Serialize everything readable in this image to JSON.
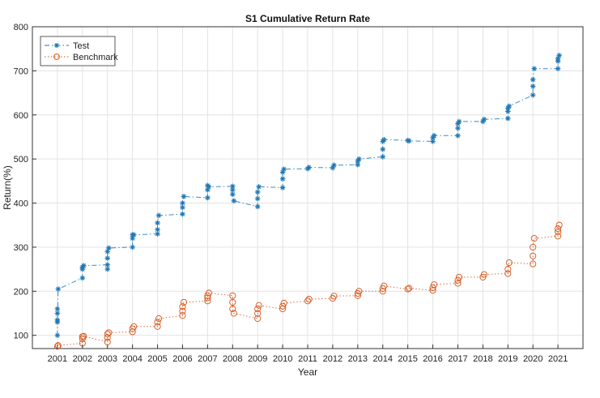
{
  "chart_data": {
    "type": "line",
    "title": "S1 Cumulative Return Rate",
    "xlabel": "Year",
    "ylabel": "Return(%)",
    "xlim": [
      2000,
      2022
    ],
    "ylim": [
      70,
      800
    ],
    "yticks": [
      100,
      200,
      300,
      400,
      500,
      600,
      700,
      800
    ],
    "xticks": [
      "2001",
      "2002",
      "2003",
      "2004",
      "2005",
      "2006",
      "2007",
      "2008",
      "2009",
      "2010",
      "2011",
      "2012",
      "2013",
      "2014",
      "2015",
      "2016",
      "2017",
      "2018",
      "2019",
      "2020",
      "2021"
    ],
    "grid": true,
    "legend_position": "top-left",
    "series": [
      {
        "name": "Test",
        "color": "#1f77b4",
        "marker": "asterisk",
        "line_style": "dash-dot",
        "points": [
          [
            2001,
            100
          ],
          [
            2001,
            135
          ],
          [
            2001,
            160
          ],
          [
            2001,
            150
          ],
          [
            2001,
            130
          ],
          [
            2001.03,
            205
          ],
          [
            2002,
            230
          ],
          [
            2002,
            250
          ],
          [
            2002,
            255
          ],
          [
            2002.05,
            258
          ],
          [
            2003,
            260
          ],
          [
            2003,
            250
          ],
          [
            2003,
            275
          ],
          [
            2003,
            290
          ],
          [
            2003.05,
            298
          ],
          [
            2004,
            300
          ],
          [
            2004,
            320
          ],
          [
            2004,
            328
          ],
          [
            2004.05,
            328
          ],
          [
            2005,
            330
          ],
          [
            2005,
            340
          ],
          [
            2005,
            355
          ],
          [
            2005.05,
            372
          ],
          [
            2006,
            375
          ],
          [
            2006,
            390
          ],
          [
            2006,
            400
          ],
          [
            2006.05,
            415
          ],
          [
            2007,
            412
          ],
          [
            2007,
            430
          ],
          [
            2007,
            440
          ],
          [
            2007.05,
            437
          ],
          [
            2008,
            438
          ],
          [
            2008,
            430
          ],
          [
            2008,
            420
          ],
          [
            2008.05,
            405
          ],
          [
            2009,
            392
          ],
          [
            2009,
            410
          ],
          [
            2009,
            425
          ],
          [
            2009.05,
            437
          ],
          [
            2010,
            435
          ],
          [
            2010,
            455
          ],
          [
            2010,
            470
          ],
          [
            2010.05,
            477
          ],
          [
            2011,
            478
          ],
          [
            2011.05,
            481
          ],
          [
            2012,
            480
          ],
          [
            2012.05,
            486
          ],
          [
            2013,
            487
          ],
          [
            2013,
            495
          ],
          [
            2013.05,
            500
          ],
          [
            2014,
            505
          ],
          [
            2014,
            522
          ],
          [
            2014,
            540
          ],
          [
            2014.05,
            544
          ],
          [
            2015,
            542
          ],
          [
            2015.05,
            541
          ],
          [
            2016,
            540
          ],
          [
            2016,
            548
          ],
          [
            2016.05,
            553
          ],
          [
            2017,
            553
          ],
          [
            2017,
            570
          ],
          [
            2017,
            580
          ],
          [
            2017.05,
            585
          ],
          [
            2018,
            585
          ],
          [
            2018.05,
            590
          ],
          [
            2019,
            592
          ],
          [
            2019,
            608
          ],
          [
            2019,
            615
          ],
          [
            2019.05,
            620
          ],
          [
            2020,
            645
          ],
          [
            2020,
            665
          ],
          [
            2020,
            680
          ],
          [
            2020.05,
            705
          ],
          [
            2021,
            705
          ],
          [
            2021,
            722
          ],
          [
            2021,
            728
          ],
          [
            2021.05,
            735
          ]
        ]
      },
      {
        "name": "Benchmark",
        "color": "#d95319",
        "marker": "circle",
        "line_style": "dotted",
        "points": [
          [
            2001,
            75
          ],
          [
            2001.03,
            77
          ],
          [
            2002,
            82
          ],
          [
            2002,
            92
          ],
          [
            2002,
            97
          ],
          [
            2002.05,
            98
          ],
          [
            2003,
            85
          ],
          [
            2003,
            95
          ],
          [
            2003,
            103
          ],
          [
            2003.05,
            106
          ],
          [
            2004,
            108
          ],
          [
            2004,
            115
          ],
          [
            2004.05,
            120
          ],
          [
            2005,
            120
          ],
          [
            2005,
            130
          ],
          [
            2005.05,
            138
          ],
          [
            2006,
            145
          ],
          [
            2006,
            155
          ],
          [
            2006,
            165
          ],
          [
            2006.05,
            175
          ],
          [
            2007,
            178
          ],
          [
            2007,
            185
          ],
          [
            2007,
            190
          ],
          [
            2007.05,
            196
          ],
          [
            2008,
            190
          ],
          [
            2008,
            175
          ],
          [
            2008,
            160
          ],
          [
            2008.05,
            150
          ],
          [
            2009,
            138
          ],
          [
            2009,
            150
          ],
          [
            2009,
            160
          ],
          [
            2009.05,
            168
          ],
          [
            2010,
            160
          ],
          [
            2010,
            166
          ],
          [
            2010.05,
            173
          ],
          [
            2011,
            178
          ],
          [
            2011.05,
            182
          ],
          [
            2012,
            184
          ],
          [
            2012.05,
            189
          ],
          [
            2013,
            190
          ],
          [
            2013,
            195
          ],
          [
            2013.05,
            200
          ],
          [
            2014,
            200
          ],
          [
            2014,
            206
          ],
          [
            2014.05,
            212
          ],
          [
            2015,
            205
          ],
          [
            2015.05,
            207
          ],
          [
            2016,
            202
          ],
          [
            2016,
            208
          ],
          [
            2016.05,
            215
          ],
          [
            2017,
            218
          ],
          [
            2017,
            225
          ],
          [
            2017.05,
            232
          ],
          [
            2018,
            232
          ],
          [
            2018.05,
            238
          ],
          [
            2019,
            240
          ],
          [
            2019,
            250
          ],
          [
            2019.05,
            265
          ],
          [
            2020,
            262
          ],
          [
            2020,
            280
          ],
          [
            2020,
            300
          ],
          [
            2020.05,
            320
          ],
          [
            2021,
            325
          ],
          [
            2021,
            335
          ],
          [
            2021,
            342
          ],
          [
            2021.05,
            350
          ]
        ]
      }
    ]
  }
}
